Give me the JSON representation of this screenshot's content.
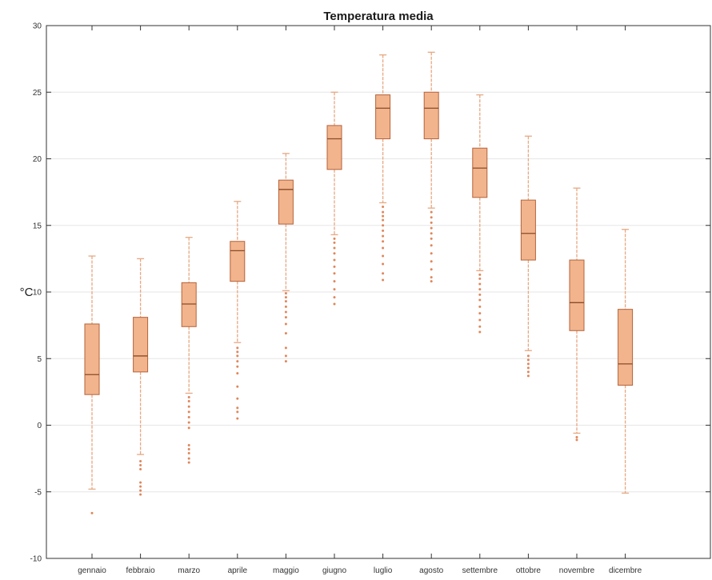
{
  "chart_data": {
    "type": "box",
    "title": "Temperatura media",
    "xlabel": "",
    "ylabel": "°C",
    "ylim": [
      -10,
      30
    ],
    "yticks": [
      -10,
      -5,
      0,
      5,
      10,
      15,
      20,
      25,
      30
    ],
    "grid": "horizontal",
    "legend": "none",
    "colors": {
      "box_fill": "#f2b48c",
      "box_edge": "#b5623a",
      "whisker": "#e7a882",
      "outlier": "#e0865a",
      "median": "#8a4a2a",
      "grid": "#e6e6e6"
    },
    "categories": [
      "gennaio",
      "febbraio",
      "marzo",
      "aprile",
      "maggio",
      "giugno",
      "luglio",
      "agosto",
      "settembre",
      "ottobre",
      "novembre",
      "dicembre"
    ],
    "series": [
      {
        "min": -4.8,
        "q1": 2.3,
        "median": 3.8,
        "q3": 7.6,
        "max": 12.7,
        "outliers": [
          -6.6
        ]
      },
      {
        "min": -2.2,
        "q1": 4.0,
        "median": 5.2,
        "q3": 8.1,
        "max": 12.5,
        "outliers": [
          -2.7,
          -3.0,
          -3.3,
          -4.3,
          -4.6,
          -4.9,
          -5.2
        ]
      },
      {
        "min": 2.4,
        "q1": 7.4,
        "median": 9.1,
        "q3": 10.7,
        "max": 14.1,
        "outliers": [
          2.1,
          1.8,
          1.4,
          1.0,
          0.6,
          0.2,
          -0.2,
          -1.5,
          -1.8,
          -2.1,
          -2.5,
          -2.8
        ]
      },
      {
        "min": 6.2,
        "q1": 10.8,
        "median": 13.1,
        "q3": 13.8,
        "max": 16.8,
        "outliers": [
          5.8,
          5.5,
          5.2,
          4.8,
          4.4,
          3.9,
          2.9,
          2.0,
          1.3,
          1.0,
          0.5
        ]
      },
      {
        "min": 10.1,
        "q1": 15.1,
        "median": 17.7,
        "q3": 18.4,
        "max": 20.4,
        "outliers": [
          9.9,
          9.6,
          9.3,
          8.9,
          8.5,
          8.1,
          7.6,
          6.9,
          5.8,
          5.2,
          4.8
        ]
      },
      {
        "min": 14.3,
        "q1": 19.2,
        "median": 21.5,
        "q3": 22.5,
        "max": 25.0,
        "outliers": [
          14.0,
          13.7,
          13.3,
          12.9,
          12.4,
          11.9,
          11.4,
          10.8,
          10.2,
          9.6,
          9.1
        ]
      },
      {
        "min": 16.7,
        "q1": 21.5,
        "median": 23.8,
        "q3": 24.8,
        "max": 27.8,
        "outliers": [
          16.4,
          16.0,
          15.7,
          15.4,
          15.0,
          14.6,
          14.2,
          13.8,
          13.3,
          12.7,
          12.1,
          11.4,
          10.9
        ]
      },
      {
        "min": 16.3,
        "q1": 21.5,
        "median": 23.8,
        "q3": 25.0,
        "max": 28.0,
        "outliers": [
          16.0,
          15.6,
          15.2,
          14.8,
          14.4,
          14.0,
          13.5,
          12.9,
          12.3,
          11.7,
          11.1,
          10.8
        ]
      },
      {
        "min": 11.6,
        "q1": 17.1,
        "median": 19.3,
        "q3": 20.8,
        "max": 24.8,
        "outliers": [
          11.3,
          11.0,
          10.6,
          10.2,
          9.8,
          9.4,
          8.9,
          8.4,
          7.9,
          7.4,
          7.0
        ]
      },
      {
        "min": 5.6,
        "q1": 12.4,
        "median": 14.4,
        "q3": 16.9,
        "max": 21.7,
        "outliers": [
          5.2,
          4.9,
          4.6,
          4.3,
          4.0,
          3.7
        ]
      },
      {
        "min": -0.6,
        "q1": 7.1,
        "median": 9.2,
        "q3": 12.4,
        "max": 17.8,
        "outliers": [
          -0.9,
          -1.1
        ]
      },
      {
        "min": -5.1,
        "q1": 3.0,
        "median": 4.6,
        "q3": 8.7,
        "max": 14.7,
        "outliers": []
      }
    ]
  }
}
